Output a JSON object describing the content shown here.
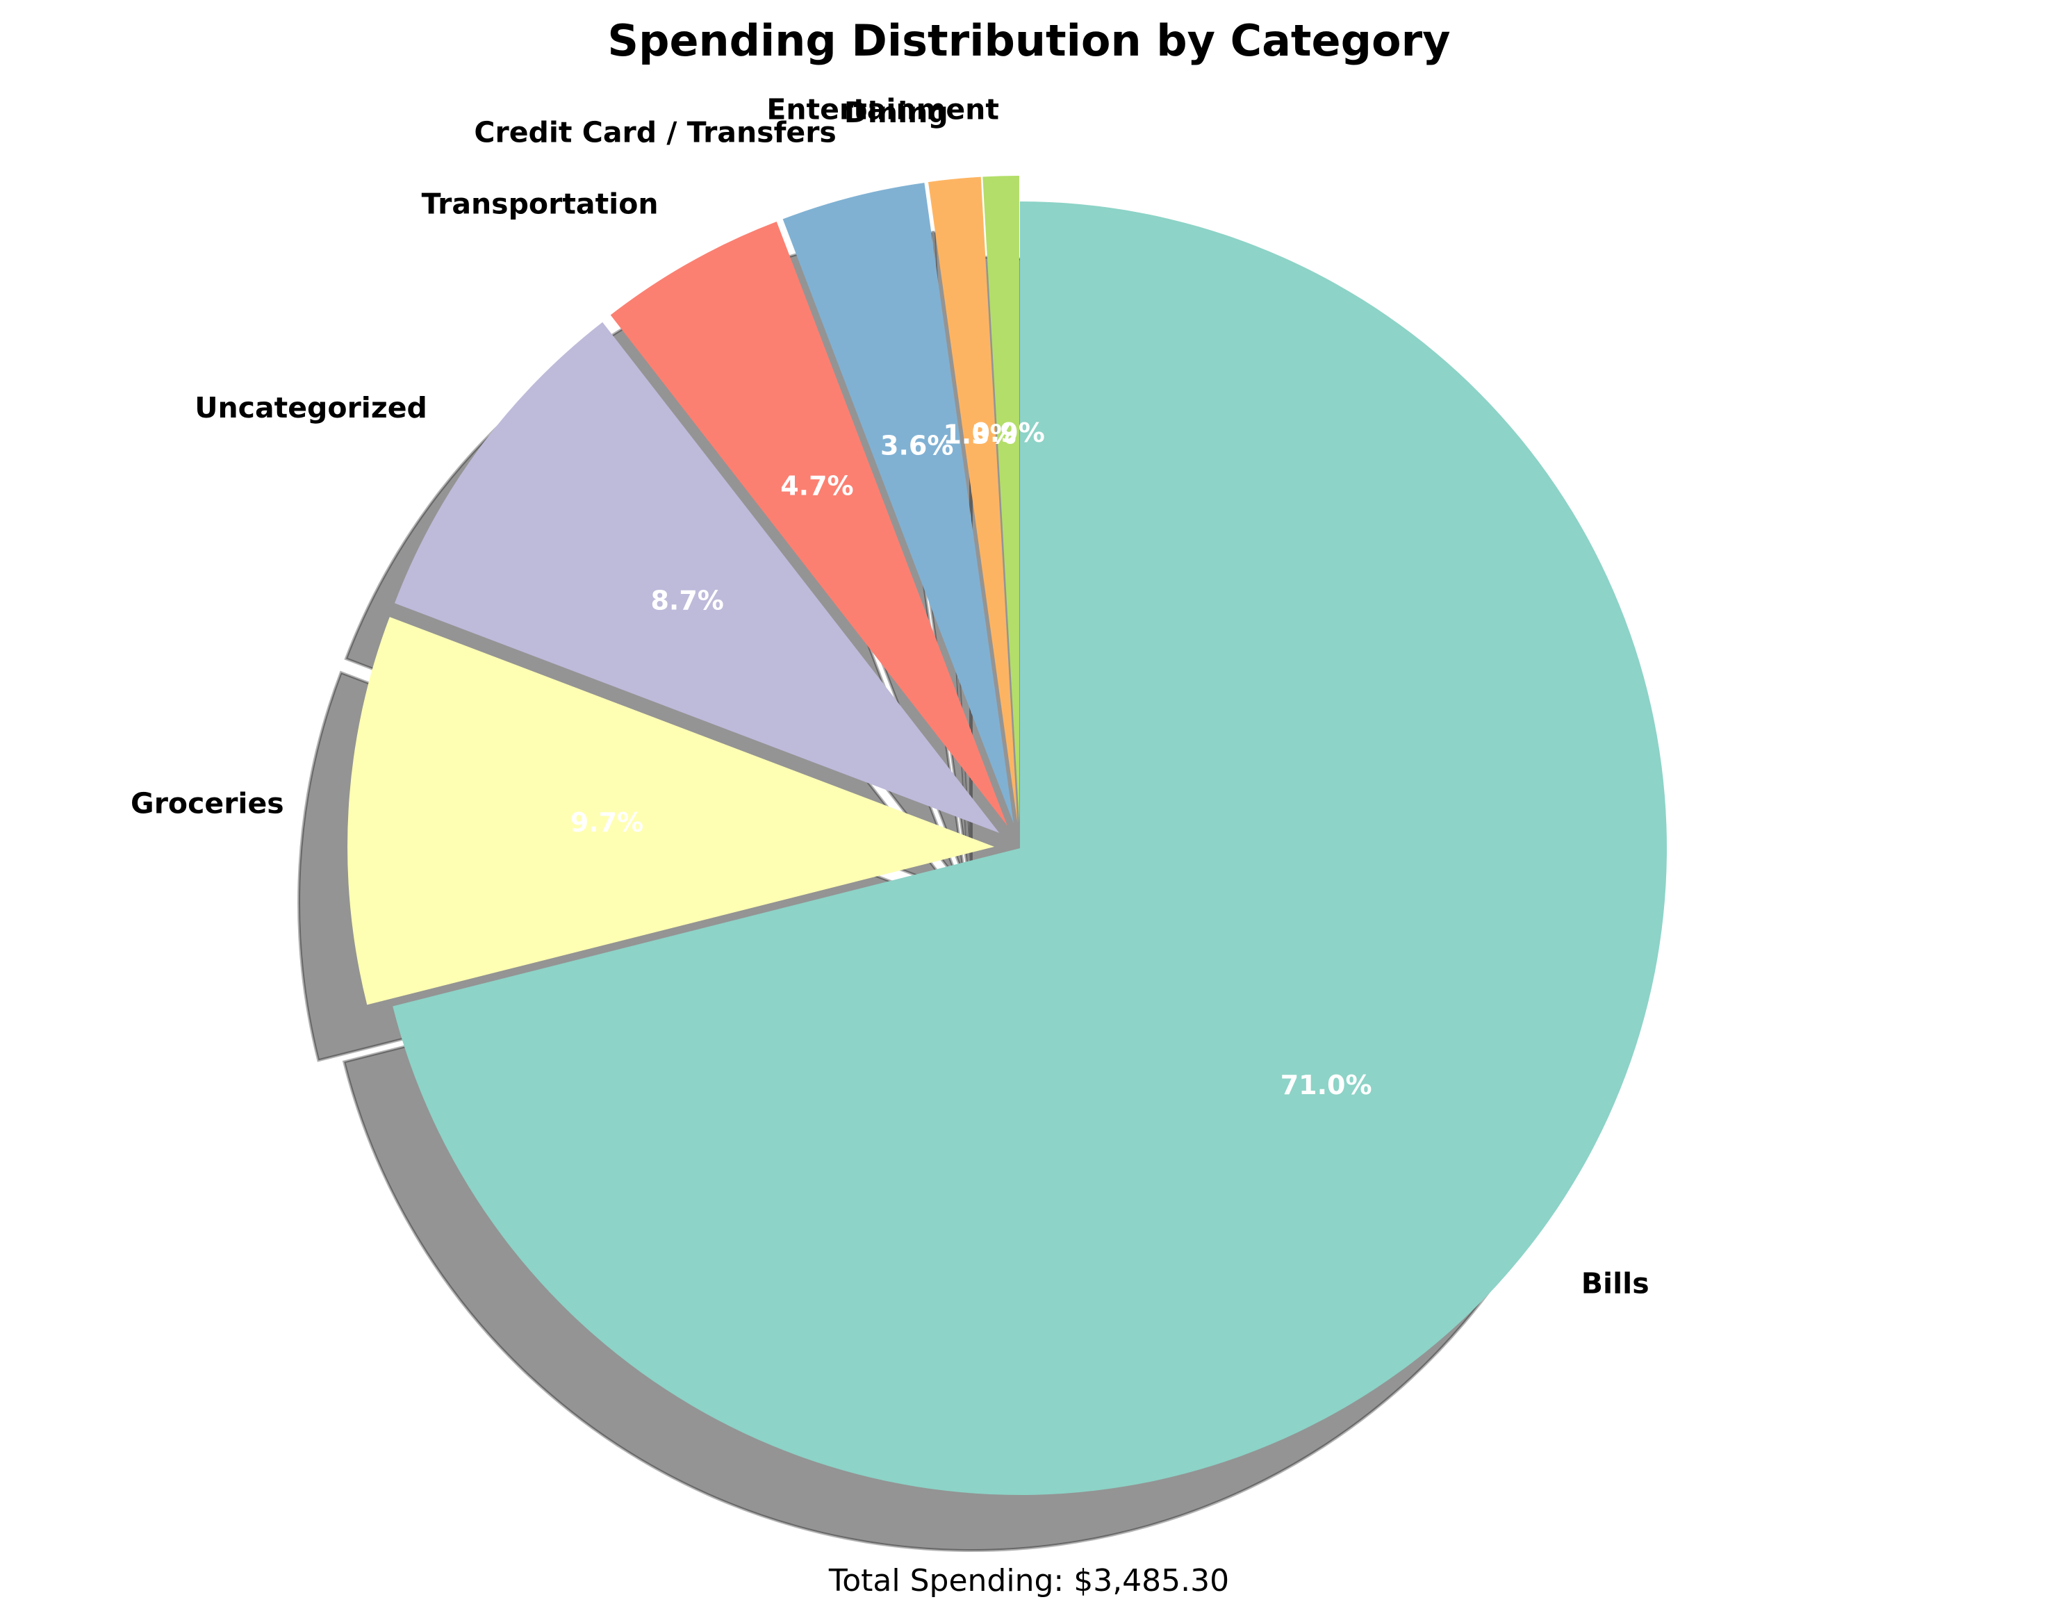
{
  "chart_data": {
    "type": "pie",
    "title": "Spending Distribution by Category",
    "footer": "Total Spending: $3,485.30",
    "start_angle_deg": 90,
    "direction": "clockwise",
    "shadow": true,
    "slices": [
      {
        "label": "Bills",
        "value": 71.0,
        "pct_label": "71.0%",
        "color": "#8dd3c7"
      },
      {
        "label": "Groceries",
        "value": 9.7,
        "pct_label": "9.7%",
        "color": "#ffffb3",
        "exploded": true
      },
      {
        "label": "Uncategorized",
        "value": 8.7,
        "pct_label": "8.7%",
        "color": "#bebada",
        "exploded": true
      },
      {
        "label": "Transportation",
        "value": 4.7,
        "pct_label": "4.7%",
        "color": "#fb8072",
        "exploded": true
      },
      {
        "label": "Credit Card / Transfers",
        "value": 3.6,
        "pct_label": "3.6%",
        "color": "#80b1d3",
        "exploded": true
      },
      {
        "label": "Dining",
        "value": 1.3,
        "pct_label": "1.3%",
        "color": "#fdb462",
        "exploded": true
      },
      {
        "label": "Entertainment",
        "value": 0.9,
        "pct_label": "0.9%",
        "color": "#b3de69",
        "exploded": true
      }
    ]
  }
}
